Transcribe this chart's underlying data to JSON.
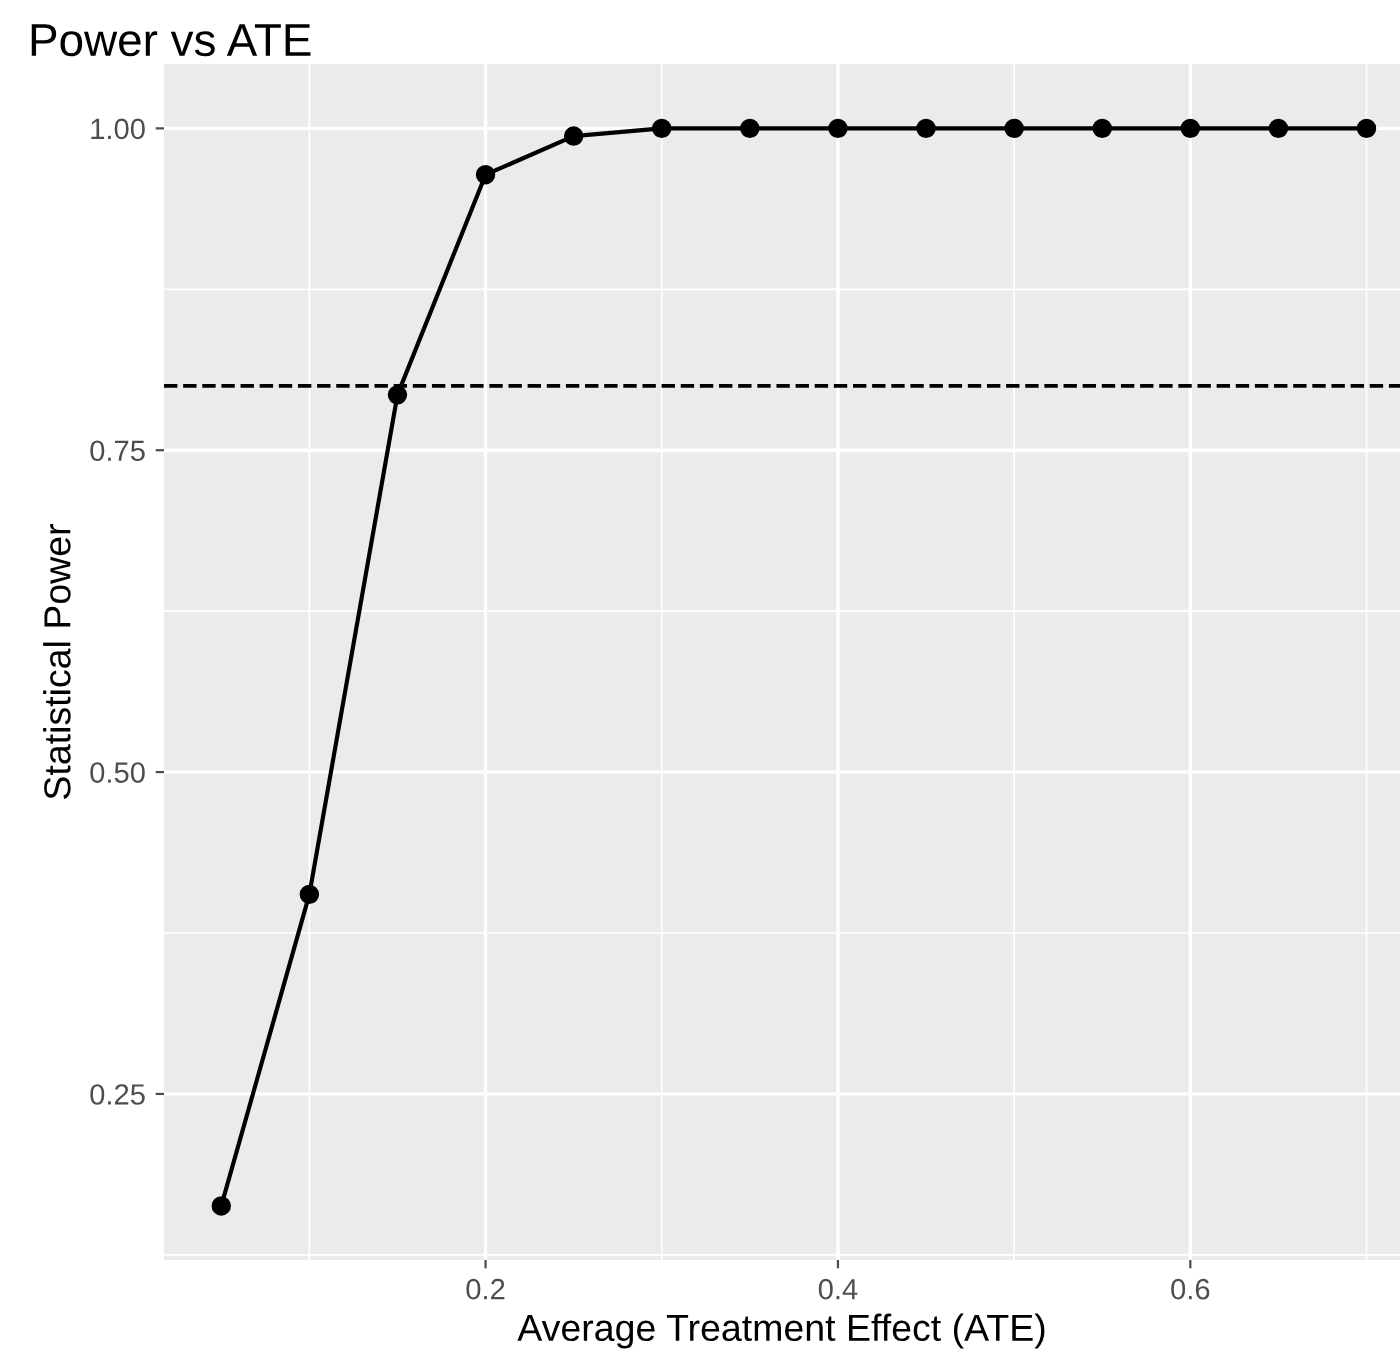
{
  "chart_data": {
    "type": "line",
    "title": "Power vs ATE",
    "xlabel": "Average Treatment Effect (ATE)",
    "ylabel": "Statistical Power",
    "x": [
      0.05,
      0.1,
      0.15,
      0.2,
      0.25,
      0.3,
      0.35,
      0.4,
      0.45,
      0.5,
      0.55,
      0.6,
      0.65,
      0.7
    ],
    "series": [
      {
        "color": "#000000",
        "values": [
          0.163,
          0.405,
          0.793,
          0.964,
          0.994,
          1.0,
          1.0,
          1.0,
          1.0,
          1.0,
          1.0,
          1.0,
          1.0,
          1.0
        ]
      }
    ],
    "xlim": [
      0.0175,
      0.719
    ],
    "ylim": [
      0.121,
      1.05
    ],
    "xticks": [
      0.2,
      0.4,
      0.6
    ],
    "yticks": [
      {
        "value": 0.25,
        "label": "0.25"
      },
      {
        "value": 0.5,
        "label": "0.50"
      },
      {
        "value": 0.75,
        "label": "0.75"
      },
      {
        "value": 1.0,
        "label": "1.00"
      }
    ],
    "ref_lines": [
      {
        "axis": "y",
        "value": 0.8,
        "line_style": "dashed",
        "color": "#000000"
      }
    ],
    "grid": true,
    "marker": "circle",
    "line_style": "solid"
  }
}
